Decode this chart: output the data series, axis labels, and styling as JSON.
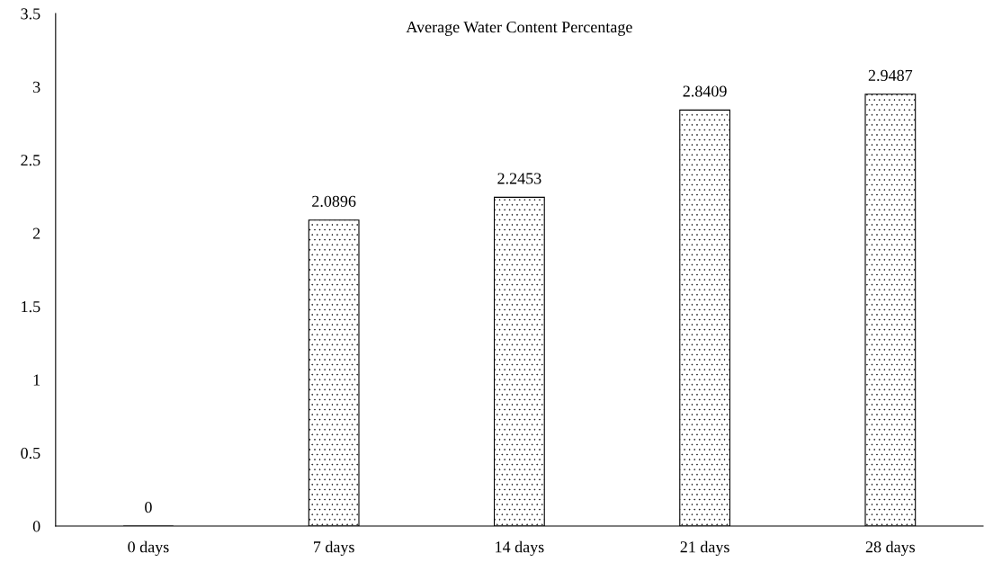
{
  "chart_data": {
    "type": "bar",
    "title": "Average Water Content Percentage",
    "categories": [
      "0 days",
      "7 days",
      "14 days",
      "21 days",
      "28 days"
    ],
    "values": [
      0,
      2.0896,
      2.2453,
      2.8409,
      2.9487
    ],
    "color": "#000000",
    "ylim": [
      0,
      3.5
    ],
    "yticks": [
      0,
      0.5,
      1,
      1.5,
      2,
      2.5,
      3,
      3.5
    ],
    "data_labels": true,
    "grid": false,
    "legend": false
  }
}
